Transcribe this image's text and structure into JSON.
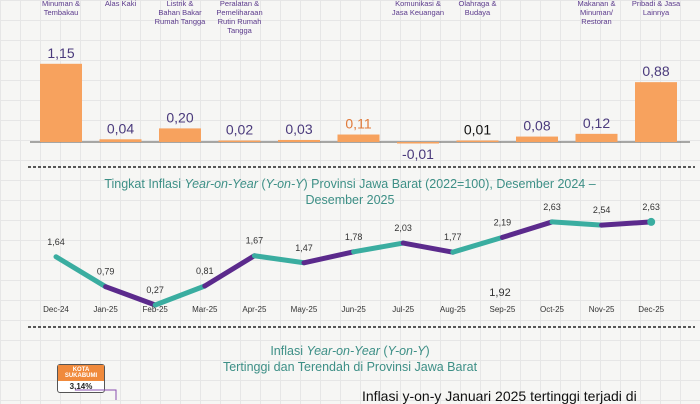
{
  "colors": {
    "bar": "#f7a25e",
    "teal": "#3aada0",
    "purple": "#5b2a8c",
    "category_text": "#5b3a8c",
    "value_text": "#4a3a7c",
    "title": "#3d8f86"
  },
  "chart_data": [
    {
      "type": "bar",
      "categories": [
        "Minuman & Tembakau",
        "Alas Kaki",
        "Listrik & Bahan Bakar Rumah Tangga",
        "Peralatan & Pemeliharaan Rutin Rumah Tangga",
        "",
        "",
        "Komunikasi & Jasa Keuangan",
        "Olahraga & Budaya",
        "",
        "Makanan & Minuman/ Restoran",
        "Pribadi & Jasa Lainnya"
      ],
      "values": [
        1.15,
        0.04,
        0.2,
        0.02,
        0.03,
        0.11,
        -0.01,
        0.01,
        0.08,
        0.12,
        0.88
      ],
      "labels": [
        "1,15",
        "0,04",
        "0,20",
        "0,02",
        "0,03",
        "0,11",
        "-0,01",
        "0,01",
        "0,08",
        "0,12",
        "0,88"
      ]
    },
    {
      "type": "line",
      "title": "Tingkat Inflasi Year-on-Year (Y-on-Y) Provinsi Jawa Barat (2022=100), Desember 2024 – Desember 2025",
      "title_parts": [
        "Tingkat Inflasi ",
        "Year-on-Year",
        " (",
        "Y-on-Y",
        ") Provinsi Jawa Barat (2022=100), Desember 2024 –",
        "Desember 2025"
      ],
      "categories": [
        "Dec-24",
        "Jan-25",
        "Feb-25",
        "Mar-25",
        "Apr-25",
        "May-25",
        "Jun-25",
        "Jul-25",
        "Aug-25",
        "Sep-25",
        "Oct-25",
        "Nov-25",
        "Dec-25"
      ],
      "values": [
        1.64,
        0.79,
        0.27,
        0.81,
        1.67,
        1.47,
        1.78,
        2.03,
        1.77,
        2.19,
        2.63,
        2.54,
        2.63
      ],
      "labels": [
        "1,64",
        "0,79",
        "0,27",
        "0,81",
        "1,67",
        "1,47",
        "1,78",
        "2,03",
        "1,77",
        "2,19",
        "2,63",
        "2,54",
        "2,63"
      ],
      "annotation": "1,92"
    }
  ],
  "bottom": {
    "title_parts": [
      "Inflasi ",
      "Year-on-Year",
      " (",
      "Y-on-Y",
      ")",
      "Tertinggi dan Terendah di Provinsi Jawa Barat"
    ],
    "highest_city": "KOTA SUKABUMI",
    "highest_value": "3,14%",
    "text": "Inflasi y-on-y Januari 2025 tertinggi terjadi di"
  }
}
